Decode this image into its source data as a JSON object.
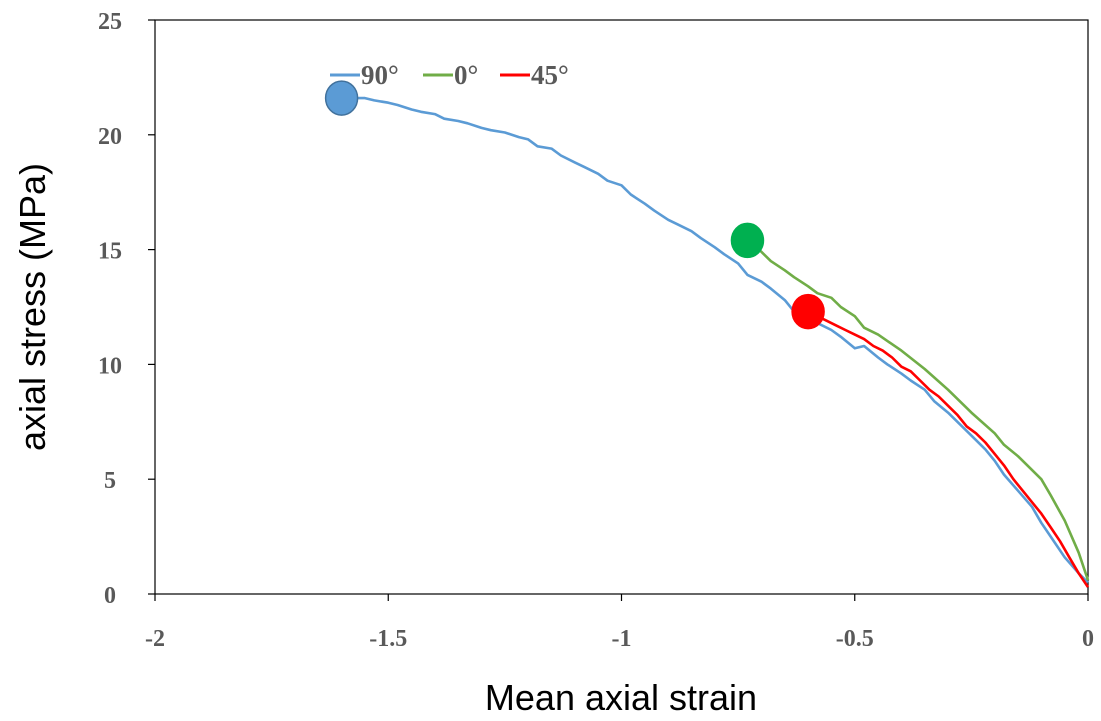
{
  "chart_data": {
    "type": "line",
    "title": "",
    "xlabel": "Mean axial strain",
    "ylabel": "axial stress (MPa)",
    "xlim": [
      -2,
      0
    ],
    "ylim": [
      0,
      25
    ],
    "xticks": [
      -2,
      -1.5,
      -1,
      -0.5,
      0
    ],
    "yticks": [
      0,
      5,
      10,
      15,
      20,
      25
    ],
    "xtick_labels": [
      "-2",
      "-1.5",
      "-1",
      "-0.5",
      "0"
    ],
    "ytick_labels": [
      "0",
      "5",
      "10",
      "15",
      "20",
      "25"
    ],
    "grid": false,
    "legend_position": "top",
    "series": [
      {
        "name": "90°",
        "color": "#5B9BD5",
        "marker_color": "#5B9BD5",
        "x": [
          0,
          -0.02,
          -0.05,
          -0.08,
          -0.1,
          -0.12,
          -0.15,
          -0.18,
          -0.2,
          -0.22,
          -0.25,
          -0.28,
          -0.3,
          -0.33,
          -0.35,
          -0.38,
          -0.4,
          -0.43,
          -0.45,
          -0.48,
          -0.5,
          -0.53,
          -0.55,
          -0.58,
          -0.6,
          -0.63,
          -0.65,
          -0.68,
          -0.7,
          -0.73,
          -0.75,
          -0.78,
          -0.8,
          -0.83,
          -0.85,
          -0.88,
          -0.9,
          -0.93,
          -0.95,
          -0.98,
          -1.0,
          -1.03,
          -1.05,
          -1.08,
          -1.1,
          -1.13,
          -1.15,
          -1.18,
          -1.2,
          -1.22,
          -1.25,
          -1.28,
          -1.3,
          -1.33,
          -1.35,
          -1.38,
          -1.4,
          -1.43,
          -1.45,
          -1.48,
          -1.5,
          -1.53,
          -1.55,
          -1.58,
          -1.6
        ],
        "y": [
          0.5,
          0.9,
          1.6,
          2.5,
          3.1,
          3.8,
          4.5,
          5.2,
          5.8,
          6.3,
          6.9,
          7.5,
          7.9,
          8.4,
          8.9,
          9.3,
          9.6,
          10.0,
          10.3,
          10.8,
          10.7,
          11.2,
          11.5,
          11.8,
          12.0,
          12.3,
          12.8,
          13.3,
          13.6,
          13.9,
          14.4,
          14.8,
          15.1,
          15.5,
          15.8,
          16.1,
          16.3,
          16.7,
          17.0,
          17.4,
          17.8,
          18.0,
          18.3,
          18.6,
          18.8,
          19.1,
          19.4,
          19.5,
          19.8,
          19.9,
          20.1,
          20.2,
          20.3,
          20.5,
          20.6,
          20.7,
          20.9,
          21.0,
          21.1,
          21.3,
          21.4,
          21.5,
          21.6,
          21.6,
          21.6
        ]
      },
      {
        "name": "0°",
        "color": "#70AD47",
        "marker_color": "#00B050",
        "x": [
          0,
          -0.02,
          -0.05,
          -0.08,
          -0.1,
          -0.13,
          -0.15,
          -0.18,
          -0.2,
          -0.25,
          -0.3,
          -0.35,
          -0.4,
          -0.45,
          -0.48,
          -0.5,
          -0.53,
          -0.55,
          -0.58,
          -0.6,
          -0.63,
          -0.65,
          -0.68,
          -0.7,
          -0.73
        ],
        "y": [
          0.6,
          1.8,
          3.2,
          4.3,
          5.0,
          5.6,
          6.0,
          6.5,
          7.0,
          7.9,
          8.9,
          9.8,
          10.6,
          11.3,
          11.6,
          12.1,
          12.5,
          12.9,
          13.1,
          13.4,
          13.8,
          14.1,
          14.5,
          14.9,
          15.4
        ]
      },
      {
        "name": "45°",
        "color": "#FF0000",
        "marker_color": "#FF0000",
        "x": [
          0,
          -0.02,
          -0.04,
          -0.06,
          -0.08,
          -0.1,
          -0.12,
          -0.14,
          -0.16,
          -0.18,
          -0.2,
          -0.22,
          -0.24,
          -0.26,
          -0.28,
          -0.3,
          -0.32,
          -0.34,
          -0.36,
          -0.38,
          -0.4,
          -0.42,
          -0.44,
          -0.46,
          -0.48,
          -0.5,
          -0.52,
          -0.54,
          -0.56,
          -0.58,
          -0.6
        ],
        "y": [
          0.3,
          0.9,
          1.6,
          2.3,
          2.9,
          3.5,
          4.0,
          4.5,
          5.0,
          5.6,
          6.1,
          6.6,
          7.0,
          7.3,
          7.8,
          8.2,
          8.6,
          8.9,
          9.3,
          9.7,
          9.9,
          10.3,
          10.6,
          10.8,
          11.1,
          11.3,
          11.5,
          11.7,
          11.9,
          12.1,
          12.3
        ]
      }
    ]
  }
}
